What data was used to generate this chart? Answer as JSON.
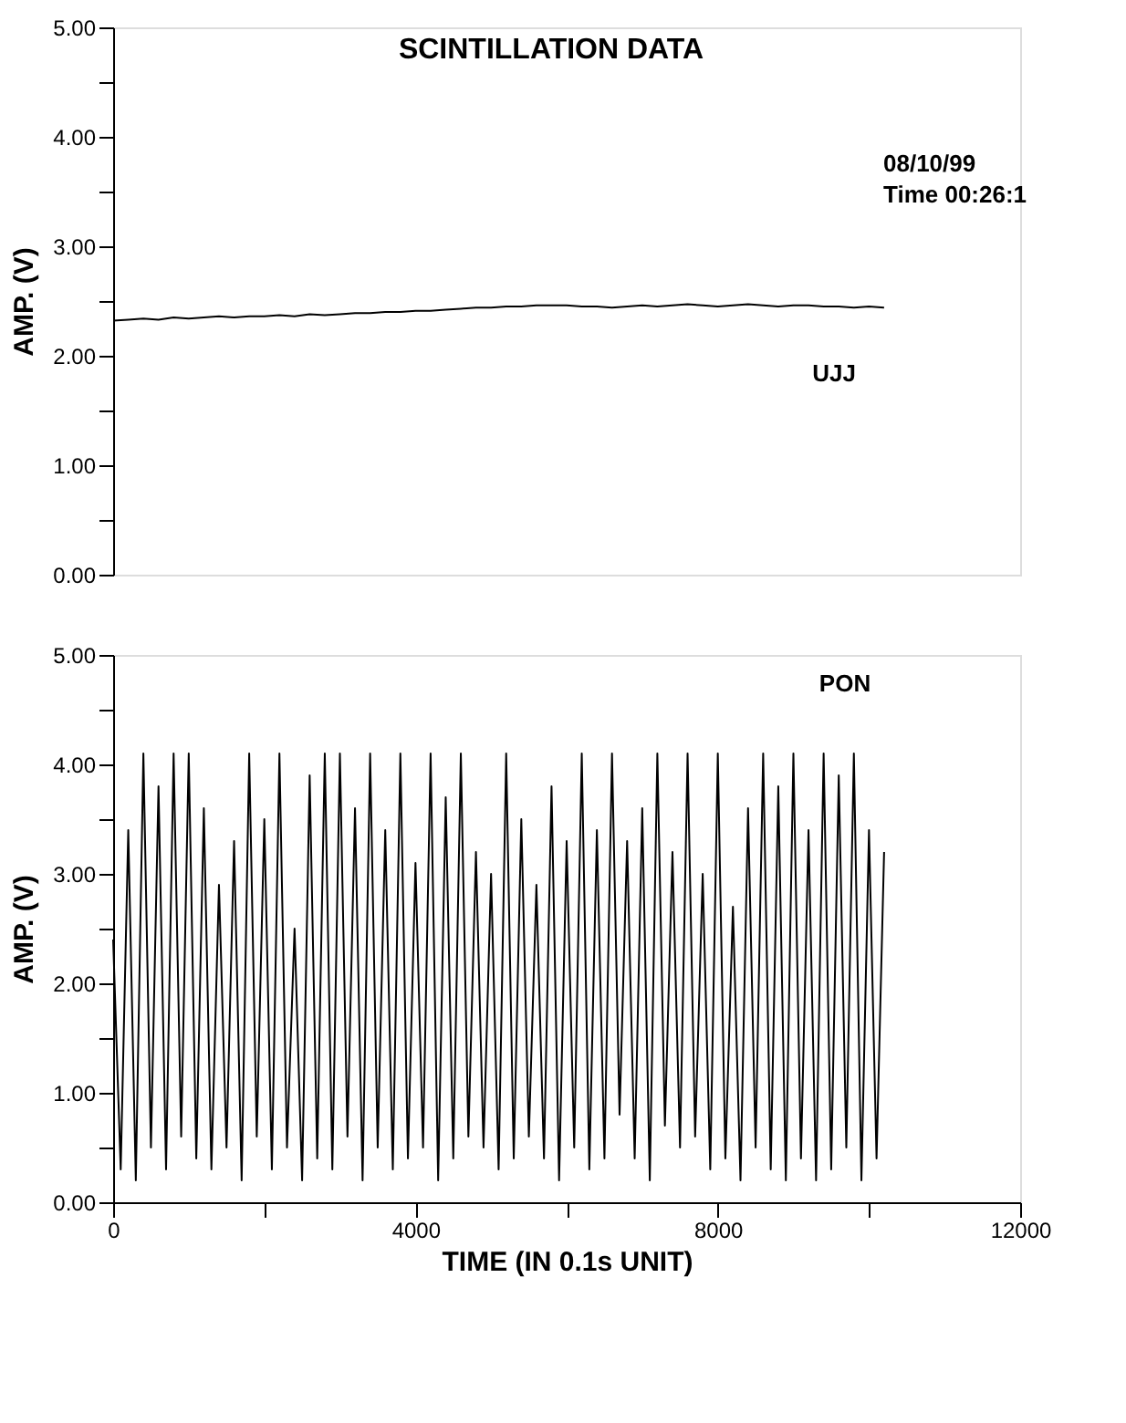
{
  "chart_data": [
    {
      "type": "line",
      "title": "SCINTILLATION DATA",
      "ylabel": "AMP. (V)",
      "annotations": [
        "08/10/99",
        "Time 00:26:1"
      ],
      "grid": false,
      "tick_labels": "y",
      "xlim": [
        0,
        12000
      ],
      "ylim": [
        0,
        5
      ],
      "yticks": [
        {
          "value": 0,
          "label": "0.00"
        },
        {
          "value": 0.5,
          "label": null
        },
        {
          "value": 1,
          "label": "1.00"
        },
        {
          "value": 1.5,
          "label": null
        },
        {
          "value": 2,
          "label": "2.00"
        },
        {
          "value": 2.5,
          "label": null
        },
        {
          "value": 3,
          "label": "3.00"
        },
        {
          "value": 3.5,
          "label": null
        },
        {
          "value": 4,
          "label": "4.00"
        },
        {
          "value": 4.5,
          "label": null
        },
        {
          "value": 5,
          "label": "5.00"
        }
      ],
      "series": [
        {
          "name": "UJJ",
          "color": "#000000",
          "x": [
            0,
            200,
            400,
            600,
            800,
            1000,
            1200,
            1400,
            1600,
            1800,
            2000,
            2200,
            2400,
            2600,
            2800,
            3000,
            3200,
            3400,
            3600,
            3800,
            4000,
            4200,
            4400,
            4600,
            4800,
            5000,
            5200,
            5400,
            5600,
            5800,
            6000,
            6200,
            6400,
            6600,
            6800,
            7000,
            7200,
            7400,
            7600,
            7800,
            8000,
            8200,
            8400,
            8600,
            8800,
            9000,
            9200,
            9400,
            9600,
            9800,
            10000,
            10200
          ],
          "values": [
            2.32,
            2.33,
            2.34,
            2.33,
            2.35,
            2.34,
            2.35,
            2.36,
            2.35,
            2.36,
            2.36,
            2.37,
            2.36,
            2.38,
            2.37,
            2.38,
            2.39,
            2.39,
            2.4,
            2.4,
            2.41,
            2.41,
            2.42,
            2.43,
            2.44,
            2.44,
            2.45,
            2.45,
            2.46,
            2.46,
            2.46,
            2.45,
            2.45,
            2.44,
            2.45,
            2.46,
            2.45,
            2.46,
            2.47,
            2.46,
            2.45,
            2.46,
            2.47,
            2.46,
            2.45,
            2.46,
            2.46,
            2.45,
            2.45,
            2.44,
            2.45,
            2.44
          ]
        }
      ]
    },
    {
      "type": "line",
      "xlabel": "TIME (IN 0.1s UNIT)",
      "ylabel": "AMP. (V)",
      "grid": false,
      "xlim": [
        0,
        12000
      ],
      "xticks": [
        0,
        {
          "value": 2000,
          "label": null
        },
        4000,
        {
          "value": 6000,
          "label": null
        },
        8000,
        {
          "value": 10000,
          "label": null
        },
        12000
      ],
      "ylim": [
        0,
        5
      ],
      "yticks": [
        {
          "value": 0,
          "label": "0.00"
        },
        {
          "value": 0.5,
          "label": null
        },
        {
          "value": 1,
          "label": "1.00"
        },
        {
          "value": 1.5,
          "label": null
        },
        {
          "value": 2,
          "label": "2.00"
        },
        {
          "value": 2.5,
          "label": null
        },
        {
          "value": 3,
          "label": "3.00"
        },
        {
          "value": 3.5,
          "label": null
        },
        {
          "value": 4,
          "label": "4.00"
        },
        {
          "value": 4.5,
          "label": null
        },
        {
          "value": 5,
          "label": "5.00"
        }
      ],
      "series": [
        {
          "name": "PON",
          "color": "#000000",
          "x": [
            0,
            100,
            200,
            300,
            400,
            500,
            600,
            700,
            800,
            900,
            1000,
            1100,
            1200,
            1300,
            1400,
            1500,
            1600,
            1700,
            1800,
            1900,
            2000,
            2100,
            2200,
            2300,
            2400,
            2500,
            2600,
            2700,
            2800,
            2900,
            3000,
            3100,
            3200,
            3300,
            3400,
            3500,
            3600,
            3700,
            3800,
            3900,
            4000,
            4100,
            4200,
            4300,
            4400,
            4500,
            4600,
            4700,
            4800,
            4900,
            5000,
            5100,
            5200,
            5300,
            5400,
            5500,
            5600,
            5700,
            5800,
            5900,
            6000,
            6100,
            6200,
            6300,
            6400,
            6500,
            6600,
            6700,
            6800,
            6900,
            7000,
            7100,
            7200,
            7300,
            7400,
            7500,
            7600,
            7700,
            7800,
            7900,
            8000,
            8100,
            8200,
            8300,
            8400,
            8500,
            8600,
            8700,
            8800,
            8900,
            9000,
            9100,
            9200,
            9300,
            9400,
            9500,
            9600,
            9700,
            9800,
            9900,
            10000,
            10100,
            10200
          ],
          "values": [
            2.4,
            0.3,
            3.4,
            0.2,
            4.1,
            0.5,
            3.8,
            0.3,
            4.1,
            0.6,
            4.1,
            0.4,
            3.6,
            0.3,
            2.9,
            0.5,
            3.3,
            0.2,
            4.1,
            0.6,
            3.5,
            0.3,
            4.1,
            0.5,
            2.5,
            0.2,
            3.9,
            0.4,
            4.1,
            0.3,
            4.1,
            0.6,
            3.6,
            0.2,
            4.1,
            0.5,
            3.4,
            0.3,
            4.1,
            0.4,
            3.1,
            0.5,
            4.1,
            0.2,
            3.7,
            0.4,
            4.1,
            0.6,
            3.2,
            0.5,
            3.0,
            0.3,
            4.1,
            0.4,
            3.5,
            0.6,
            2.9,
            0.4,
            3.8,
            0.2,
            3.3,
            0.5,
            4.1,
            0.3,
            3.4,
            0.4,
            4.1,
            0.8,
            3.3,
            0.4,
            3.6,
            0.2,
            4.1,
            0.7,
            3.2,
            0.5,
            4.1,
            0.6,
            3.0,
            0.3,
            4.1,
            0.4,
            2.7,
            0.2,
            3.6,
            0.5,
            4.1,
            0.3,
            3.8,
            0.2,
            4.1,
            0.4,
            3.4,
            0.2,
            4.1,
            0.3,
            3.9,
            0.5,
            4.1,
            0.2,
            3.4,
            0.4,
            3.2
          ]
        }
      ]
    }
  ]
}
